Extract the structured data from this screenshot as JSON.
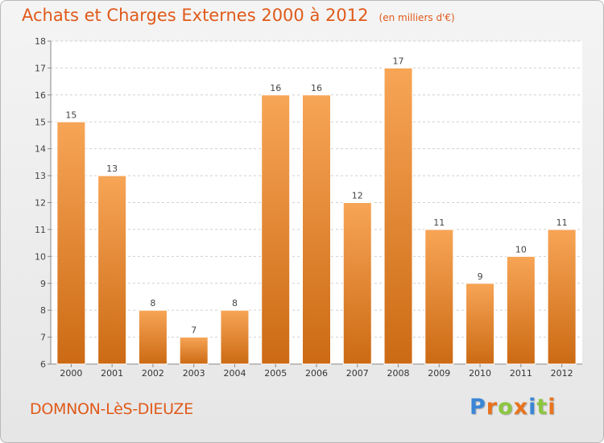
{
  "header": {
    "title": "Achats et Charges Externes 2000 à 2012",
    "unit": "(en milliers d'€)"
  },
  "footer": {
    "location": "DOMNON-LèS-DIEUZE",
    "brand": "Proxiti",
    "brand_letters": [
      {
        "ch": "P",
        "color": "#3a86d6"
      },
      {
        "ch": "r",
        "color": "#e8731c"
      },
      {
        "ch": "o",
        "color": "#8cc63f"
      },
      {
        "ch": "x",
        "color": "#e8731c"
      },
      {
        "ch": "i",
        "color": "#3a86d6"
      },
      {
        "ch": "t",
        "color": "#8cc63f"
      },
      {
        "ch": "i",
        "color": "#e8731c"
      }
    ]
  },
  "colors": {
    "accent": "#e05a1a",
    "bar_top": "#f7a556",
    "bar_bottom": "#cc6a14",
    "grid": "#cfcfcf",
    "plot_bg": "#ffffff"
  },
  "chart_data": {
    "type": "bar",
    "title": "Achats et Charges Externes 2000 à 2012",
    "categories": [
      "2000",
      "2001",
      "2002",
      "2003",
      "2004",
      "2005",
      "2006",
      "2007",
      "2008",
      "2009",
      "2010",
      "2011",
      "2012"
    ],
    "values": [
      15,
      13,
      8,
      7,
      8,
      16,
      16,
      12,
      17,
      11,
      9,
      10,
      11
    ],
    "ylim": [
      6,
      18
    ],
    "yticks": [
      6,
      7,
      8,
      9,
      10,
      11,
      12,
      13,
      14,
      15,
      16,
      17,
      18
    ],
    "grid": true,
    "xlabel": "",
    "ylabel": ""
  }
}
